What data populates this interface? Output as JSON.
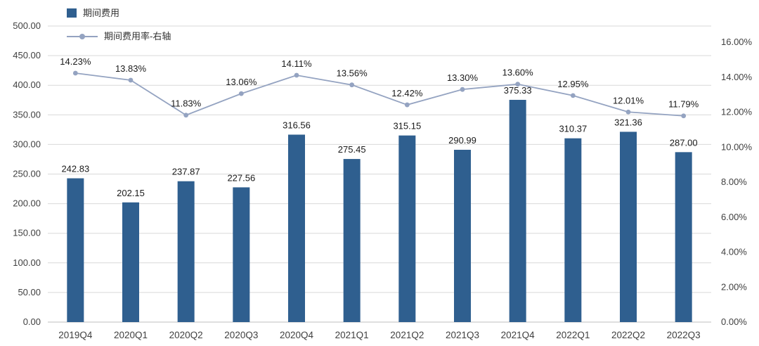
{
  "chart_data": {
    "type": "combo",
    "title": "",
    "categories": [
      "2019Q4",
      "2020Q1",
      "2020Q2",
      "2020Q3",
      "2020Q4",
      "2021Q1",
      "2021Q2",
      "2021Q3",
      "2021Q4",
      "2022Q1",
      "2022Q2",
      "2022Q3"
    ],
    "series": [
      {
        "name": "期间费用",
        "type": "bar",
        "axis": "left",
        "color": "#2F5F8F",
        "values": [
          242.83,
          202.15,
          237.87,
          227.56,
          316.56,
          275.45,
          315.15,
          290.99,
          375.33,
          310.37,
          321.36,
          287.0
        ],
        "labels": [
          "242.83",
          "202.15",
          "237.87",
          "227.56",
          "316.56",
          "275.45",
          "315.15",
          "290.99",
          "375.33",
          "310.37",
          "321.36",
          "287.00"
        ]
      },
      {
        "name": "期间费用率-右轴",
        "type": "line",
        "axis": "right",
        "color": "#94A3C1",
        "values": [
          14.23,
          13.83,
          11.83,
          13.06,
          14.11,
          13.56,
          12.42,
          13.3,
          13.6,
          12.95,
          12.01,
          11.79
        ],
        "labels": [
          "14.23%",
          "13.83%",
          "11.83%",
          "13.06%",
          "14.11%",
          "13.56%",
          "12.42%",
          "13.30%",
          "13.60%",
          "12.95%",
          "12.01%",
          "11.79%"
        ]
      }
    ],
    "left_axis": {
      "min": 0,
      "max": 500,
      "step": 50,
      "labels": [
        "500.00",
        "450.00",
        "400.00",
        "350.00",
        "300.00",
        "250.00",
        "200.00",
        "150.00",
        "100.00",
        "50.00",
        "0.00"
      ]
    },
    "right_axis": {
      "min": 0,
      "max": 16,
      "step": 2,
      "labels": [
        "16.00%",
        "14.00%",
        "12.00%",
        "10.00%",
        "8.00%",
        "6.00%",
        "4.00%",
        "2.00%",
        "0.00%"
      ]
    },
    "grid": true,
    "legend_position": "top-left",
    "colors": {
      "grid": "#D9D9D9",
      "axis_line": "#BFBFBF",
      "label": "#404040",
      "data_label": "#1A1A1A",
      "background": "#FFFFFF"
    }
  }
}
